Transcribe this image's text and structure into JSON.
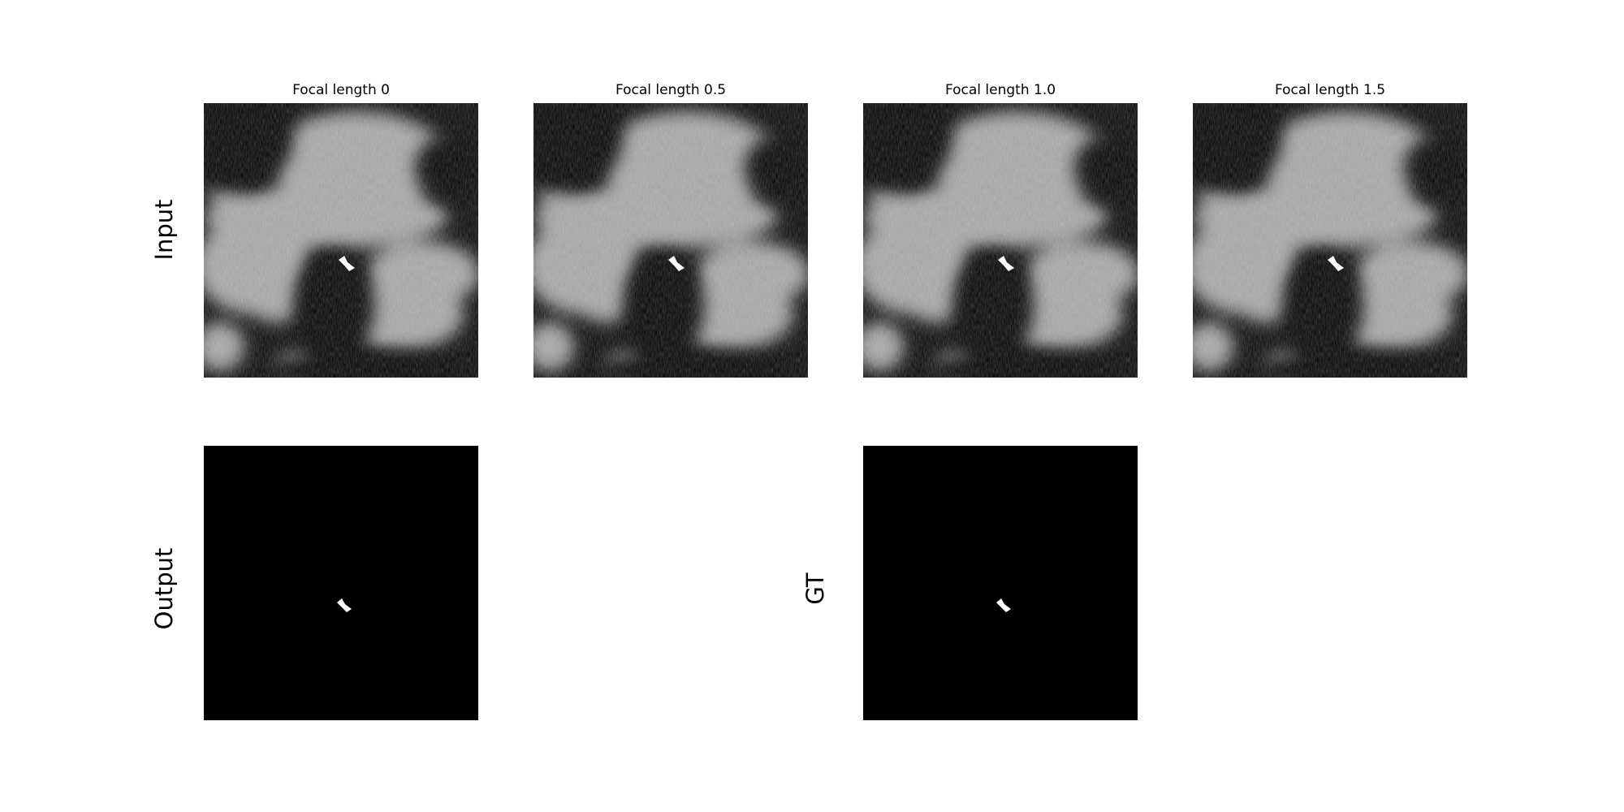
{
  "figure": {
    "column_titles": [
      "Focal length 0",
      "Focal length 0.5",
      "Focal length 1.0",
      "Focal length 1.5"
    ],
    "row_labels": {
      "top": "Input",
      "bottom_left": "Output",
      "bottom_right": "GT"
    },
    "panels": [
      {
        "name": "input-focal-0",
        "content": "grayscale satellite input, focal length 0"
      },
      {
        "name": "input-focal-0.5",
        "content": "grayscale satellite input, focal length 0.5"
      },
      {
        "name": "input-focal-1.0",
        "content": "grayscale satellite input, focal length 1.0"
      },
      {
        "name": "input-focal-1.5",
        "content": "grayscale satellite input, focal length 1.5"
      },
      {
        "name": "output-mask",
        "content": "black mask with single white blob"
      },
      {
        "name": "gt-mask",
        "content": "black mask with single white blob"
      }
    ],
    "colors": {
      "background": "#ffffff",
      "mask_bg": "#000000",
      "blob": "#ffffff"
    }
  }
}
